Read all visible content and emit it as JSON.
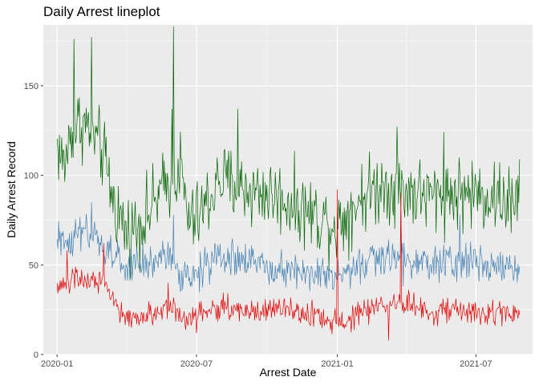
{
  "chart_data": {
    "type": "line",
    "title": "Daily Arrest lineplot",
    "xlabel": "Arrest Date",
    "ylabel": "Daily Arrest Record",
    "x_start": "2020-01-01",
    "x_end": "2021-08-27",
    "xlim": [
      "2019-12-14",
      "2021-09-13"
    ],
    "ylim": [
      0,
      184
    ],
    "x_ticks": [
      {
        "date": "2020-01-01",
        "label": "2020-01"
      },
      {
        "date": "2020-07-01",
        "label": "2020-07"
      },
      {
        "date": "2021-01-01",
        "label": "2021-01"
      },
      {
        "date": "2021-07-01",
        "label": "2021-07"
      }
    ],
    "x_minor_ticks": [
      "2020-04-01",
      "2020-10-01",
      "2021-04-01"
    ],
    "y_ticks": [
      0,
      50,
      100,
      150
    ],
    "y_minor_ticks": [
      25,
      75,
      125,
      175
    ],
    "grid": true,
    "background": "#ebebeb",
    "series": [
      {
        "color": "#006400",
        "knots": [
          [
            "2020-01-01",
            117
          ],
          [
            "2020-01-10",
            105
          ],
          [
            "2020-01-20",
            125
          ],
          [
            "2020-02-01",
            130
          ],
          [
            "2020-02-15",
            125
          ],
          [
            "2020-03-01",
            112
          ],
          [
            "2020-03-15",
            85
          ],
          [
            "2020-04-01",
            68
          ],
          [
            "2020-04-15",
            72
          ],
          [
            "2020-05-01",
            80
          ],
          [
            "2020-05-15",
            90
          ],
          [
            "2020-06-01",
            100
          ],
          [
            "2020-06-10",
            105
          ],
          [
            "2020-06-20",
            75
          ],
          [
            "2020-07-01",
            75
          ],
          [
            "2020-07-15",
            85
          ],
          [
            "2020-08-01",
            98
          ],
          [
            "2020-09-01",
            92
          ],
          [
            "2020-10-01",
            90
          ],
          [
            "2020-11-01",
            85
          ],
          [
            "2020-12-01",
            78
          ],
          [
            "2021-01-01",
            72
          ],
          [
            "2021-02-01",
            88
          ],
          [
            "2021-03-01",
            95
          ],
          [
            "2021-04-01",
            92
          ],
          [
            "2021-05-01",
            88
          ],
          [
            "2021-06-01",
            90
          ],
          [
            "2021-07-01",
            90
          ],
          [
            "2021-08-27",
            85
          ]
        ],
        "noise": 17,
        "spikes": [
          [
            "2020-01-23",
            176
          ],
          [
            "2020-02-15",
            177
          ],
          [
            "2020-06-01",
            183
          ],
          [
            "2020-05-30",
            137
          ],
          [
            "2020-08-24",
            137
          ],
          [
            "2021-03-20",
            127
          ],
          [
            "2021-05-20",
            124
          ],
          [
            "2021-08-16",
            68
          ]
        ]
      },
      {
        "color": "#4682b4",
        "knots": [
          [
            "2020-01-01",
            62
          ],
          [
            "2020-02-01",
            68
          ],
          [
            "2020-03-01",
            60
          ],
          [
            "2020-04-01",
            48
          ],
          [
            "2020-05-01",
            52
          ],
          [
            "2020-06-01",
            55
          ],
          [
            "2020-06-10",
            40
          ],
          [
            "2020-07-01",
            45
          ],
          [
            "2020-08-01",
            55
          ],
          [
            "2020-09-01",
            52
          ],
          [
            "2020-10-01",
            50
          ],
          [
            "2020-11-01",
            48
          ],
          [
            "2020-12-01",
            45
          ],
          [
            "2021-01-01",
            42
          ],
          [
            "2021-02-01",
            50
          ],
          [
            "2021-03-01",
            55
          ],
          [
            "2021-04-01",
            52
          ],
          [
            "2021-05-01",
            50
          ],
          [
            "2021-06-01",
            52
          ],
          [
            "2021-07-01",
            52
          ],
          [
            "2021-08-27",
            48
          ]
        ],
        "noise": 9,
        "spikes": [
          [
            "2020-02-15",
            85
          ],
          [
            "2020-06-01",
            78
          ],
          [
            "2021-03-25",
            80
          ],
          [
            "2021-06-10",
            78
          ]
        ]
      },
      {
        "color": "#e00000",
        "knots": [
          [
            "2020-01-01",
            38
          ],
          [
            "2020-02-01",
            42
          ],
          [
            "2020-03-01",
            40
          ],
          [
            "2020-03-15",
            28
          ],
          [
            "2020-04-01",
            20
          ],
          [
            "2020-05-01",
            22
          ],
          [
            "2020-06-01",
            28
          ],
          [
            "2020-06-10",
            20
          ],
          [
            "2020-07-01",
            22
          ],
          [
            "2020-08-01",
            26
          ],
          [
            "2020-09-01",
            25
          ],
          [
            "2020-10-01",
            24
          ],
          [
            "2020-11-01",
            24
          ],
          [
            "2020-12-01",
            22
          ],
          [
            "2021-01-01",
            18
          ],
          [
            "2021-02-01",
            22
          ],
          [
            "2021-03-01",
            28
          ],
          [
            "2021-04-01",
            28
          ],
          [
            "2021-05-01",
            25
          ],
          [
            "2021-06-01",
            24
          ],
          [
            "2021-07-01",
            24
          ],
          [
            "2021-08-27",
            22
          ]
        ],
        "noise": 6,
        "spikes": [
          [
            "2020-01-14",
            58
          ],
          [
            "2020-03-02",
            62
          ],
          [
            "2020-05-25",
            40
          ],
          [
            "2021-01-01",
            92
          ],
          [
            "2021-03-25",
            90
          ],
          [
            "2021-03-09",
            8
          ]
        ]
      }
    ]
  }
}
